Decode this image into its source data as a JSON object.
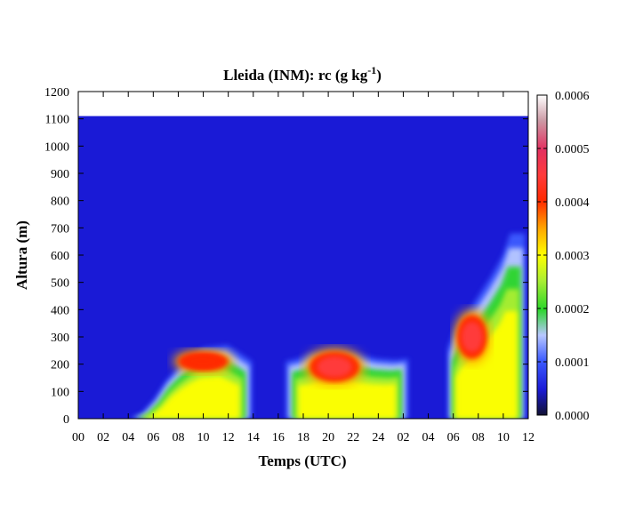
{
  "chart_data": {
    "type": "heatmap",
    "title": {
      "main": "Lleida (INM): rc (g kg",
      "sup": "-1",
      "tail": ")"
    },
    "xlabel": "Temps (UTC)",
    "ylabel": "Altura (m)",
    "x_ticks": [
      "00",
      "02",
      "04",
      "06",
      "08",
      "10",
      "12",
      "14",
      "16",
      "18",
      "20",
      "22",
      "24",
      "02",
      "04",
      "06",
      "08",
      "10",
      "12"
    ],
    "x_range_hours": [
      0,
      36
    ],
    "y_ticks": [
      "0",
      "100",
      "200",
      "300",
      "400",
      "500",
      "600",
      "700",
      "800",
      "900",
      "1000",
      "1100",
      "1200"
    ],
    "y_range": [
      0,
      1200
    ],
    "data_top_m": 1110,
    "colorbar": {
      "ticks": [
        "0.0000",
        "0.0001",
        "0.0002",
        "0.0003",
        "0.0004",
        "0.0005",
        "0.0006"
      ],
      "range": [
        0,
        0.0006
      ],
      "colors": [
        [
          0.0,
          "#111133"
        ],
        [
          0.08,
          "#1a1ad6"
        ],
        [
          0.17,
          "#3d5bff"
        ],
        [
          0.25,
          "#b8c8ff"
        ],
        [
          0.33,
          "#2bd62b"
        ],
        [
          0.42,
          "#aaee33"
        ],
        [
          0.5,
          "#ffff00"
        ],
        [
          0.58,
          "#ffaa00"
        ],
        [
          0.67,
          "#ff2a00"
        ],
        [
          0.75,
          "#ff3b3b"
        ],
        [
          0.83,
          "#e33060"
        ],
        [
          0.92,
          "#cc9aa5"
        ],
        [
          1.0,
          "#ffffff"
        ]
      ]
    },
    "regions": [
      {
        "name": "morning-growth",
        "t_start": 4.0,
        "t_end": 14.0,
        "outline_top": [
          [
            4,
            0
          ],
          [
            5,
            20
          ],
          [
            6,
            70
          ],
          [
            7,
            140
          ],
          [
            8,
            190
          ],
          [
            9,
            230
          ],
          [
            10,
            260
          ],
          [
            12,
            270
          ],
          [
            13,
            240
          ],
          [
            14,
            210
          ]
        ],
        "core": {
          "t": 10.0,
          "h": 210,
          "rx_h": 2.0,
          "ry_m": 35,
          "value": 0.0004
        }
      },
      {
        "name": "night-cloud",
        "t_start": 16.5,
        "t_end": 26.5,
        "outline_top": [
          [
            16.5,
            210
          ],
          [
            17.5,
            220
          ],
          [
            18.5,
            240
          ],
          [
            20,
            245
          ],
          [
            22,
            240
          ],
          [
            24,
            220
          ],
          [
            25.5,
            215
          ],
          [
            26.5,
            220
          ]
        ],
        "core": {
          "t": 20.5,
          "h": 190,
          "rx_h": 2.0,
          "ry_m": 55,
          "value": 0.00042
        }
      },
      {
        "name": "late-morning-tower",
        "t_start": 29.5,
        "t_end": 35.8,
        "outline_top": [
          [
            29.5,
            260
          ],
          [
            30,
            320
          ],
          [
            31,
            380
          ],
          [
            32,
            450
          ],
          [
            33,
            520
          ],
          [
            34,
            600
          ],
          [
            34.6,
            680
          ],
          [
            35.8,
            680
          ]
        ],
        "core": {
          "t": 31.5,
          "h": 300,
          "rx_h": 1.2,
          "ry_m": 80,
          "value": 0.00045
        }
      }
    ]
  }
}
